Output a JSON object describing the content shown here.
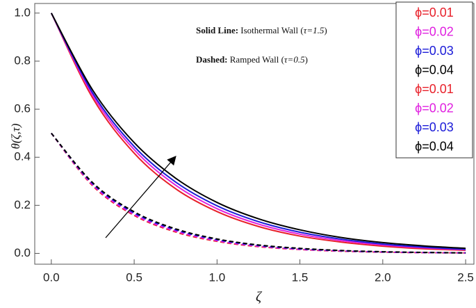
{
  "chart_data": {
    "type": "line",
    "y_label": "θ(ζ,τ)",
    "x_label": "ζ",
    "annotations": [
      [
        "Solid Line:",
        " Isothermal Wall (",
        "τ=1.5",
        ")"
      ],
      [
        "Dashed:",
        " Ramped Wall (",
        "τ=0.5",
        ")"
      ]
    ],
    "x": [
      0,
      0.25,
      0.5,
      0.75,
      1.0,
      1.25,
      1.5,
      1.75,
      2.0,
      2.25,
      2.5
    ],
    "series": [
      {
        "name": "ϕ=0.01",
        "color": "#e8202a",
        "dashed": false,
        "values": [
          1.0,
          0.646,
          0.417,
          0.269,
          0.174,
          0.112,
          0.072,
          0.047,
          0.03,
          0.019,
          0.013
        ]
      },
      {
        "name": "ϕ=0.02",
        "color": "#e020e0",
        "dashed": false,
        "values": [
          1.0,
          0.657,
          0.432,
          0.284,
          0.186,
          0.122,
          0.08,
          0.053,
          0.035,
          0.023,
          0.015
        ]
      },
      {
        "name": "ϕ=0.03",
        "color": "#1a1ad8",
        "dashed": false,
        "values": [
          1.0,
          0.667,
          0.445,
          0.297,
          0.198,
          0.132,
          0.088,
          0.059,
          0.039,
          0.026,
          0.017
        ]
      },
      {
        "name": "ϕ=0.04",
        "color": "#000000",
        "dashed": false,
        "values": [
          1.0,
          0.679,
          0.461,
          0.313,
          0.212,
          0.144,
          0.098,
          0.066,
          0.045,
          0.031,
          0.021
        ]
      },
      {
        "name": "ϕ=0.01",
        "color": "#e8202a",
        "dashed": true,
        "values": [
          0.5,
          0.281,
          0.158,
          0.089,
          0.05,
          0.028,
          0.016,
          0.009,
          0.005,
          0.003,
          0.002
        ]
      },
      {
        "name": "ϕ=0.02",
        "color": "#e020e0",
        "dashed": true,
        "values": [
          0.5,
          0.285,
          0.162,
          0.093,
          0.053,
          0.03,
          0.017,
          0.01,
          0.006,
          0.003,
          0.002
        ]
      },
      {
        "name": "ϕ=0.03",
        "color": "#1a1ad8",
        "dashed": true,
        "values": [
          0.5,
          0.29,
          0.168,
          0.098,
          0.057,
          0.033,
          0.019,
          0.011,
          0.006,
          0.004,
          0.002
        ]
      },
      {
        "name": "ϕ=0.04",
        "color": "#000000",
        "dashed": true,
        "values": [
          0.5,
          0.294,
          0.173,
          0.102,
          0.06,
          0.035,
          0.021,
          0.012,
          0.007,
          0.004,
          0.002
        ]
      }
    ],
    "xlim": [
      -0.1,
      2.55
    ],
    "ylim": [
      -0.045,
      1.04
    ],
    "xticks": [
      {
        "value": 0,
        "label": "0.0"
      },
      {
        "value": 0.5,
        "label": "0.5"
      },
      {
        "value": 1,
        "label": "1.0"
      },
      {
        "value": 1.5,
        "label": "1.5"
      },
      {
        "value": 2,
        "label": "2.0"
      },
      {
        "value": 2.5,
        "label": "2.5"
      }
    ],
    "yticks": [
      {
        "value": 0,
        "label": "0.0"
      },
      {
        "value": 0.2,
        "label": "0.2"
      },
      {
        "value": 0.4,
        "label": "0.4"
      },
      {
        "value": 0.6,
        "label": "0.6"
      },
      {
        "value": 0.8,
        "label": "0.8"
      },
      {
        "value": 1,
        "label": "1.0"
      }
    ],
    "legend": "top-right"
  }
}
